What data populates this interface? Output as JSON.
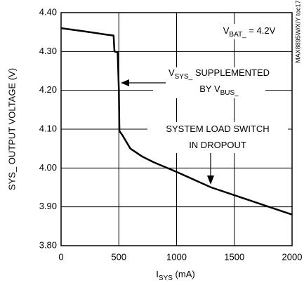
{
  "chart_data": {
    "type": "line",
    "x": [
      0,
      200,
      400,
      455,
      462,
      490,
      500,
      505,
      530,
      560,
      600,
      700,
      800,
      1000,
      1300,
      1500,
      1800,
      2000
    ],
    "series": [
      {
        "name": "SYS_ output voltage",
        "color": "#000000",
        "values": [
          4.36,
          4.352,
          4.343,
          4.341,
          4.3,
          4.298,
          4.2,
          4.095,
          4.085,
          4.07,
          4.05,
          4.03,
          4.015,
          3.99,
          3.95,
          3.93,
          3.9,
          3.88
        ]
      }
    ],
    "xlim": [
      0,
      2000
    ],
    "xticks": [
      0,
      500,
      1000,
      1500,
      2000
    ],
    "ylim": [
      3.8,
      4.4
    ],
    "yticks": [
      {
        "value": 3.8,
        "label": "3.80"
      },
      {
        "value": 3.9,
        "label": "3.90"
      },
      {
        "value": 4.0,
        "label": "4.00"
      },
      {
        "value": 4.1,
        "label": "4.10"
      },
      {
        "value": 4.2,
        "label": "4.20"
      },
      {
        "value": 4.3,
        "label": "4.30"
      },
      {
        "value": 4.4,
        "label": "4.40"
      }
    ],
    "grid": true,
    "y_label": "SYS_ OUTPUT VOLTAGE (V)",
    "x_label": [
      {
        "text": "I"
      },
      {
        "text": "SYS",
        "sub": true
      },
      {
        "text": "  (mA)"
      }
    ],
    "annotations": [
      [
        {
          "text": "V"
        },
        {
          "text": "BAT_",
          "sub": true
        },
        {
          "text": " = 4.2V"
        }
      ],
      [
        {
          "text": "V"
        },
        {
          "text": "SYS_",
          "sub": true
        },
        {
          "text": " SUPPLEMENTED"
        }
      ],
      [
        {
          "text": "BY V"
        },
        {
          "text": "BUS_",
          "sub": true
        }
      ],
      [
        {
          "text": "SYSTEM LOAD SWITCH"
        }
      ],
      [
        {
          "text": "IN DROPOUT"
        }
      ]
    ],
    "side_note": "MAX8895W/X/Y toc17"
  }
}
